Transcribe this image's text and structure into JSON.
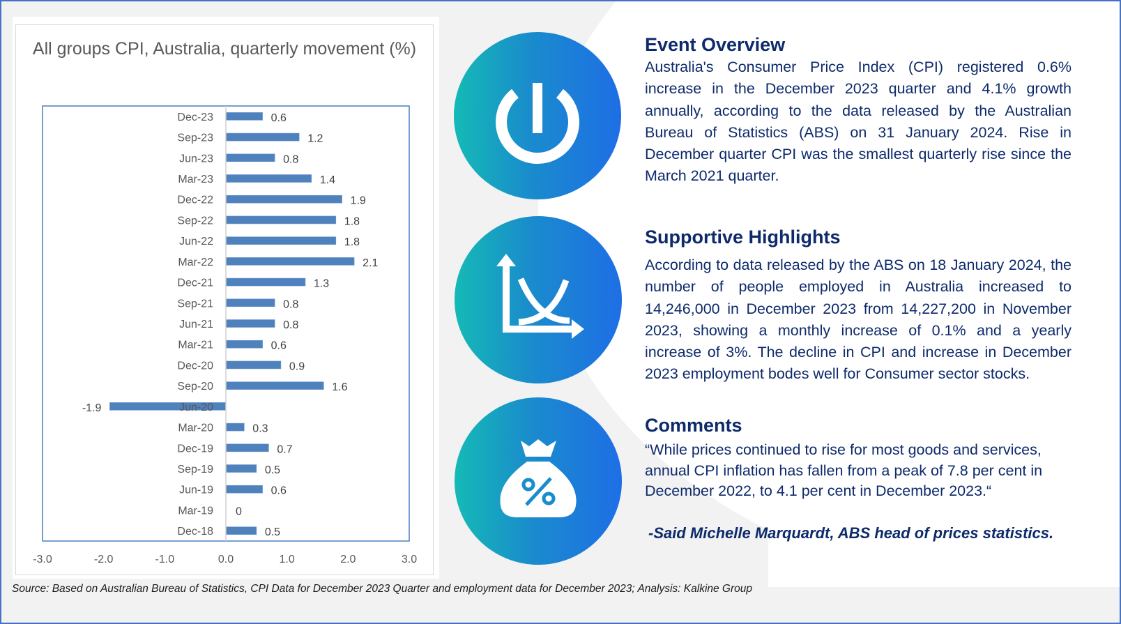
{
  "chart_data": {
    "type": "bar",
    "orientation": "horizontal",
    "title": "All groups CPI, Australia, quarterly movement (%)",
    "xlabel": "",
    "ylabel": "",
    "xlim": [
      -3.0,
      3.0
    ],
    "x_ticks": [
      "-3.0",
      "-2.0",
      "-1.0",
      "0.0",
      "1.0",
      "2.0",
      "3.0"
    ],
    "categories": [
      "Dec-23",
      "Sep-23",
      "Jun-23",
      "Mar-23",
      "Dec-22",
      "Sep-22",
      "Jun-22",
      "Mar-22",
      "Dec-21",
      "Sep-21",
      "Jun-21",
      "Mar-21",
      "Dec-20",
      "Sep-20",
      "Jun-20",
      "Mar-20",
      "Dec-19",
      "Sep-19",
      "Jun-19",
      "Mar-19",
      "Dec-18"
    ],
    "values": [
      0.6,
      1.2,
      0.8,
      1.4,
      1.9,
      1.8,
      1.8,
      2.1,
      1.3,
      0.8,
      0.8,
      0.6,
      0.9,
      1.6,
      -1.9,
      0.3,
      0.7,
      0.5,
      0.6,
      0,
      0.5
    ],
    "labels": [
      "0.6",
      "1.2",
      "0.8",
      "1.4",
      "1.9",
      "1.8",
      "1.8",
      "2.1",
      "1.3",
      "0.8",
      "0.8",
      "0.6",
      "0.9",
      "1.6",
      "-1.9",
      "0.3",
      "0.7",
      "0.5",
      "0.6",
      "0",
      "0.5"
    ],
    "bar_color": "#4f81bd",
    "grid": false,
    "legend": "none"
  },
  "sections": {
    "event_overview": {
      "title": "Event Overview",
      "body": "Australia's Consumer Price Index (CPI) registered 0.6% increase in the December 2023 quarter and 4.1% growth annually, according to the data released by the Australian Bureau of Statistics (ABS) on 31 January 2024. Rise in December quarter CPI was the smallest quarterly rise since the March 2021 quarter.",
      "icon": "power-icon"
    },
    "supportive_highlights": {
      "title": "Supportive Highlights",
      "body": "According to data released by the ABS on 18 January 2024, the number of people employed in Australia increased to 14,246,000 in December 2023 from 14,227,200 in November 2023, showing a monthly increase of 0.1% and a yearly increase of 3%. The decline in CPI and increase in December 2023 employment bodes well for Consumer sector stocks.",
      "icon": "crossing-curves-chart-icon"
    },
    "comments": {
      "title": "Comments",
      "body": "“While prices continued to rise for most goods and services, annual CPI inflation has fallen from a peak of 7.8 per cent in December 2022, to 4.1 per cent in December 2023.“",
      "attribution": "-Said Michelle Marquardt, ABS head of prices statistics.",
      "icon": "money-bag-percent-icon"
    }
  },
  "source": "Source: Based on Australian Bureau of Statistics, CPI Data for December 2023 Quarter and employment data for December 2023; Analysis: Kalkine Group",
  "colors": {
    "heading_text": "#0d2a6b",
    "frame_border": "#4472c4",
    "icon_gradient_start": "#14bab6",
    "icon_gradient_end": "#1e6ee6",
    "background": "#f2f2f2"
  }
}
